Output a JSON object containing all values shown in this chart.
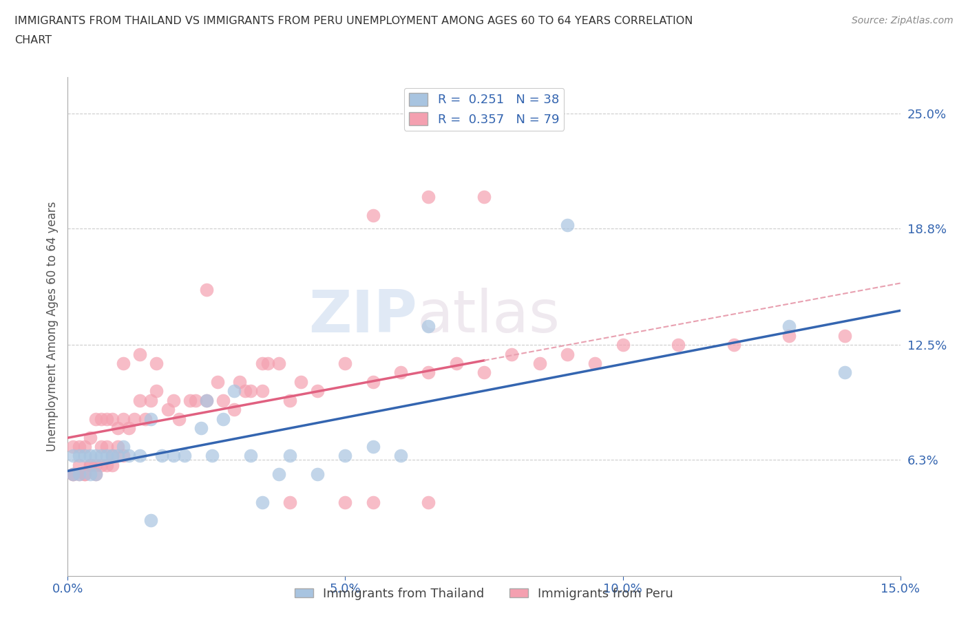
{
  "title": "IMMIGRANTS FROM THAILAND VS IMMIGRANTS FROM PERU UNEMPLOYMENT AMONG AGES 60 TO 64 YEARS CORRELATION\nCHART",
  "source_text": "Source: ZipAtlas.com",
  "ylabel": "Unemployment Among Ages 60 to 64 years",
  "xlim": [
    0.0,
    0.15
  ],
  "ylim": [
    0.0,
    0.27
  ],
  "ytick_vals": [
    0.0,
    0.063,
    0.125,
    0.188,
    0.25
  ],
  "ytick_labels": [
    "",
    "6.3%",
    "12.5%",
    "18.8%",
    "25.0%"
  ],
  "xtick_vals": [
    0.0,
    0.05,
    0.1,
    0.15
  ],
  "xtick_labels": [
    "0.0%",
    "5.0%",
    "10.0%",
    "15.0%"
  ],
  "thailand_color": "#a8c4e0",
  "peru_color": "#f4a0b0",
  "thailand_line_color": "#3465b0",
  "peru_line_solid_color": "#e06080",
  "peru_line_dash_color": "#e8a0b0",
  "legend_R_thailand": "0.251",
  "legend_N_thailand": "38",
  "legend_R_peru": "0.357",
  "legend_N_peru": "79",
  "legend_label_thailand": "Immigrants from Thailand",
  "legend_label_peru": "Immigrants from Peru",
  "watermark_text": "ZIPatlas",
  "thailand_x": [
    0.001,
    0.001,
    0.002,
    0.002,
    0.003,
    0.004,
    0.004,
    0.005,
    0.005,
    0.006,
    0.007,
    0.008,
    0.009,
    0.01,
    0.011,
    0.013,
    0.015,
    0.017,
    0.019,
    0.021,
    0.024,
    0.026,
    0.028,
    0.03,
    0.033,
    0.035,
    0.038,
    0.04,
    0.045,
    0.05,
    0.055,
    0.06,
    0.065,
    0.09,
    0.13,
    0.14,
    0.025,
    0.015
  ],
  "thailand_y": [
    0.065,
    0.055,
    0.065,
    0.055,
    0.065,
    0.065,
    0.055,
    0.065,
    0.055,
    0.065,
    0.065,
    0.065,
    0.065,
    0.07,
    0.065,
    0.065,
    0.085,
    0.065,
    0.065,
    0.065,
    0.08,
    0.065,
    0.085,
    0.1,
    0.065,
    0.04,
    0.055,
    0.065,
    0.055,
    0.065,
    0.07,
    0.065,
    0.135,
    0.19,
    0.135,
    0.11,
    0.095,
    0.03
  ],
  "peru_x": [
    0.001,
    0.001,
    0.002,
    0.002,
    0.003,
    0.003,
    0.004,
    0.004,
    0.005,
    0.005,
    0.006,
    0.006,
    0.007,
    0.007,
    0.008,
    0.008,
    0.009,
    0.009,
    0.01,
    0.01,
    0.011,
    0.012,
    0.013,
    0.014,
    0.015,
    0.016,
    0.018,
    0.02,
    0.022,
    0.025,
    0.028,
    0.03,
    0.032,
    0.033,
    0.035,
    0.038,
    0.04,
    0.042,
    0.045,
    0.05,
    0.055,
    0.06,
    0.065,
    0.07,
    0.075,
    0.08,
    0.085,
    0.09,
    0.095,
    0.1,
    0.11,
    0.12,
    0.13,
    0.14,
    0.025,
    0.035,
    0.04,
    0.05,
    0.055,
    0.065,
    0.001,
    0.002,
    0.003,
    0.004,
    0.005,
    0.006,
    0.007,
    0.008,
    0.01,
    0.013,
    0.016,
    0.019,
    0.023,
    0.027,
    0.031,
    0.036,
    0.055,
    0.065,
    0.075
  ],
  "peru_y": [
    0.07,
    0.055,
    0.07,
    0.055,
    0.07,
    0.055,
    0.075,
    0.06,
    0.085,
    0.06,
    0.085,
    0.07,
    0.07,
    0.085,
    0.085,
    0.065,
    0.08,
    0.07,
    0.085,
    0.065,
    0.08,
    0.085,
    0.095,
    0.085,
    0.095,
    0.1,
    0.09,
    0.085,
    0.095,
    0.095,
    0.095,
    0.09,
    0.1,
    0.1,
    0.1,
    0.115,
    0.095,
    0.105,
    0.1,
    0.115,
    0.105,
    0.11,
    0.11,
    0.115,
    0.11,
    0.12,
    0.115,
    0.12,
    0.115,
    0.125,
    0.125,
    0.125,
    0.13,
    0.13,
    0.155,
    0.115,
    0.04,
    0.04,
    0.04,
    0.04,
    0.055,
    0.06,
    0.055,
    0.06,
    0.055,
    0.06,
    0.06,
    0.06,
    0.115,
    0.12,
    0.115,
    0.095,
    0.095,
    0.105,
    0.105,
    0.115,
    0.195,
    0.205,
    0.205
  ]
}
